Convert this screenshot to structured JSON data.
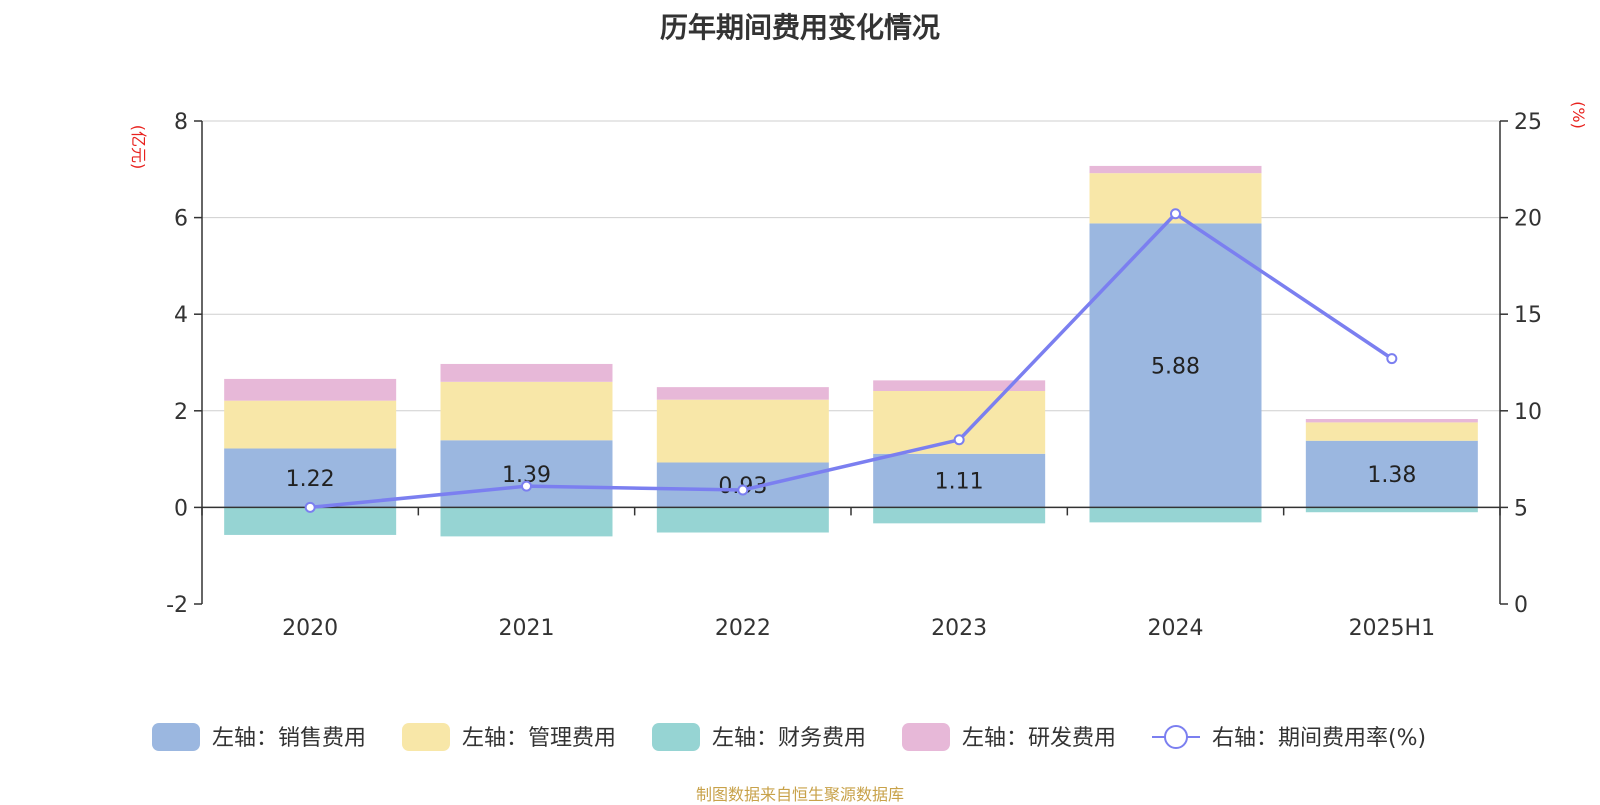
{
  "chart_data": {
    "type": "bar",
    "title": "历年期间费用变化情况",
    "categories": [
      "2020",
      "2021",
      "2022",
      "2023",
      "2024",
      "2025H1"
    ],
    "left_axis": {
      "unit_label": "(亿元)",
      "ticks": [
        8,
        6,
        4,
        2,
        0,
        -2
      ],
      "ylim": [
        -2,
        8
      ]
    },
    "right_axis": {
      "unit_label": "(%)",
      "ticks": [
        25,
        20,
        15,
        10,
        5,
        0
      ],
      "ylim": [
        0,
        25
      ]
    },
    "series": [
      {
        "name": "左轴：销售费用",
        "axis": "left",
        "stack": true,
        "color": "#9bb7e0",
        "values": [
          1.22,
          1.39,
          0.93,
          1.11,
          5.88,
          1.38
        ],
        "show_labels": true
      },
      {
        "name": "左轴：管理费用",
        "axis": "left",
        "stack": true,
        "color": "#f8e7a8",
        "values": [
          0.99,
          1.21,
          1.3,
          1.3,
          1.04,
          0.38
        ],
        "show_labels": false
      },
      {
        "name": "左轴：财务费用",
        "axis": "left",
        "stack": true,
        "color": "#96d4d3",
        "values": [
          -0.57,
          -0.6,
          -0.52,
          -0.33,
          -0.31,
          -0.1
        ],
        "show_labels": false
      },
      {
        "name": "左轴：研发费用",
        "axis": "left",
        "stack": true,
        "color": "#e7b8d8",
        "values": [
          0.45,
          0.37,
          0.26,
          0.22,
          0.15,
          0.07
        ],
        "show_labels": false
      },
      {
        "name": "右轴：期间费用率(%)",
        "axis": "right",
        "type": "line",
        "color": "#7b7ff0",
        "values": [
          5.0,
          6.1,
          5.9,
          8.5,
          20.2,
          12.7
        ]
      }
    ],
    "grid": true,
    "legend_position": "bottom"
  },
  "source_note": "制图数据来自恒生聚源数据库"
}
